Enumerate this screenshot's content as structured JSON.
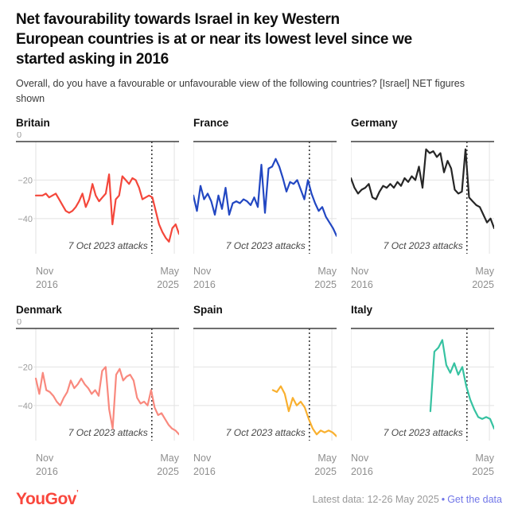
{
  "header": {
    "title_lines": [
      "Net favourability towards Israel in key Western",
      "European countries is at or near its lowest level since we",
      "started asking in 2016"
    ],
    "subtitle": "Overall, do you have a favourable or unfavourable view of the following countries? [Israel] NET figures shown"
  },
  "chart_data": {
    "type": "line",
    "title": "Net favourability towards Israel in key Western European countries is at or near its lowest level since we started asking in 2016",
    "question": "Overall, do you have a favourable or unfavourable view of the following countries? [Israel] NET figures shown",
    "x_range_labels": {
      "left": [
        "Nov",
        "2016"
      ],
      "right": [
        "May",
        "2025"
      ]
    },
    "y_ticks": [
      {
        "label": "0",
        "value": 0
      },
      {
        "label": "−20",
        "value": -20
      },
      {
        "label": "−40",
        "value": -40
      }
    ],
    "y_domain": [
      0,
      -57
    ],
    "annotation": {
      "text": "7 Oct 2023 attacks",
      "x_fraction": 0.81
    },
    "end_gridline_fraction": 0.967,
    "grid": "horizontal 0/-20/-40, vertical at Nov 2016 and May 2025",
    "charts": [
      {
        "name": "Britain",
        "color": "#f4473b",
        "y_labels": true,
        "x_start": 0,
        "values": [
          -28,
          -28,
          -28,
          -27,
          -29,
          -28,
          -27,
          -30,
          -33,
          -36,
          -37,
          -36,
          -34,
          -31,
          -27,
          -34,
          -30,
          -22,
          -28,
          -31,
          -29,
          -27,
          -17,
          -43,
          -30,
          -28,
          -18,
          -20,
          -22,
          -19,
          -20,
          -24,
          -30,
          -29,
          -28,
          -29,
          -36,
          -43,
          -47,
          -50,
          -52,
          -45,
          -43,
          -48
        ]
      },
      {
        "name": "France",
        "color": "#2247c2",
        "y_labels": false,
        "x_start": 0,
        "values": [
          -28,
          -36,
          -23,
          -30,
          -27,
          -31,
          -38,
          -28,
          -35,
          -24,
          -38,
          -32,
          -31,
          -32,
          -30,
          -31,
          -33,
          -29,
          -34,
          -12,
          -37,
          -14,
          -13,
          -9,
          -13,
          -19,
          -26,
          -21,
          -22,
          -20,
          -25,
          -30,
          -20,
          -27,
          -32,
          -36,
          -34,
          -39,
          -42,
          -45,
          -49
        ]
      },
      {
        "name": "Germany",
        "color": "#262626",
        "y_labels": false,
        "x_start": 0,
        "values": [
          -19,
          -24,
          -27,
          -25,
          -24,
          -22,
          -29,
          -30,
          -26,
          -23,
          -24,
          -22,
          -24,
          -21,
          -23,
          -19,
          -21,
          -18,
          -20,
          -13,
          -24,
          -4,
          -6,
          -5,
          -8,
          -6,
          -16,
          -10,
          -14,
          -25,
          -27,
          -26,
          -4,
          -29,
          -31,
          -33,
          -34,
          -38,
          -42,
          -40,
          -45
        ]
      },
      {
        "name": "Denmark",
        "color": "#f9897e",
        "y_labels": true,
        "x_start": 0,
        "values": [
          -26,
          -34,
          -23,
          -32,
          -33,
          -35,
          -38,
          -40,
          -36,
          -33,
          -27,
          -31,
          -29,
          -26,
          -29,
          -31,
          -34,
          -32,
          -35,
          -22,
          -20,
          -42,
          -52,
          -24,
          -21,
          -27,
          -25,
          -24,
          -27,
          -36,
          -39,
          -38,
          -40,
          -32,
          -41,
          -45,
          -44,
          -47,
          -50,
          -52,
          -53,
          -55
        ]
      },
      {
        "name": "Spain",
        "color": "#f9b02f",
        "y_labels": false,
        "x_start": 0.555,
        "values": [
          -32,
          -33,
          -30,
          -34,
          -43,
          -36,
          -40,
          -38,
          -41,
          -47,
          -52,
          -55,
          -53,
          -54,
          -53,
          -54,
          -56
        ]
      },
      {
        "name": "Italy",
        "color": "#36c2a1",
        "y_labels": false,
        "x_start": 0.555,
        "values": [
          -43,
          -12,
          -10,
          -6,
          -19,
          -23,
          -18,
          -24,
          -20,
          -30,
          -37,
          -42,
          -46,
          -47,
          -46,
          -47,
          -52
        ]
      }
    ]
  },
  "footer": {
    "logo_text": "YouGov",
    "logo_mark": "’",
    "logo_color": "#f9473d",
    "latest_data": "Latest data: 12-26 May 2025",
    "separator": "•",
    "link_label": "Get the data",
    "link_color": "#7176e8"
  },
  "colors": {
    "zero_line": "#3f3f3f",
    "gridline": "#e2e2e2",
    "dotted_line": "#3c3c3c",
    "axis_text": "#9b9b9b",
    "annotation_text": "#474747"
  }
}
